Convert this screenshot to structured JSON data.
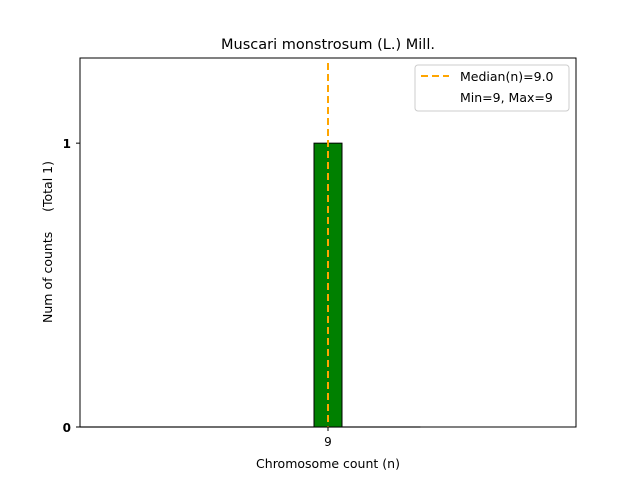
{
  "chart_data": {
    "type": "bar",
    "title": "Muscari monstrosum (L.) Mill.",
    "xlabel": "Chromosome count (n)",
    "ylabel": "Num of counts     (Total 1)",
    "categories": [
      9
    ],
    "values": [
      1
    ],
    "bar_width": 1,
    "x_ticks": [
      9
    ],
    "y_ticks": [
      0,
      1
    ],
    "xlim": [
      0.14,
      17.86
    ],
    "ylim": [
      0,
      1.3
    ],
    "grid": false,
    "bar_color": "#008000",
    "median": {
      "value": 9.0,
      "color": "#FFA500",
      "style": "dashed"
    },
    "baseline_range": [
      0.14,
      12.3
    ],
    "legend": {
      "placement": "top-right",
      "entries": [
        "Median(n)=9.0",
        "Min=9, Max=9"
      ]
    }
  }
}
